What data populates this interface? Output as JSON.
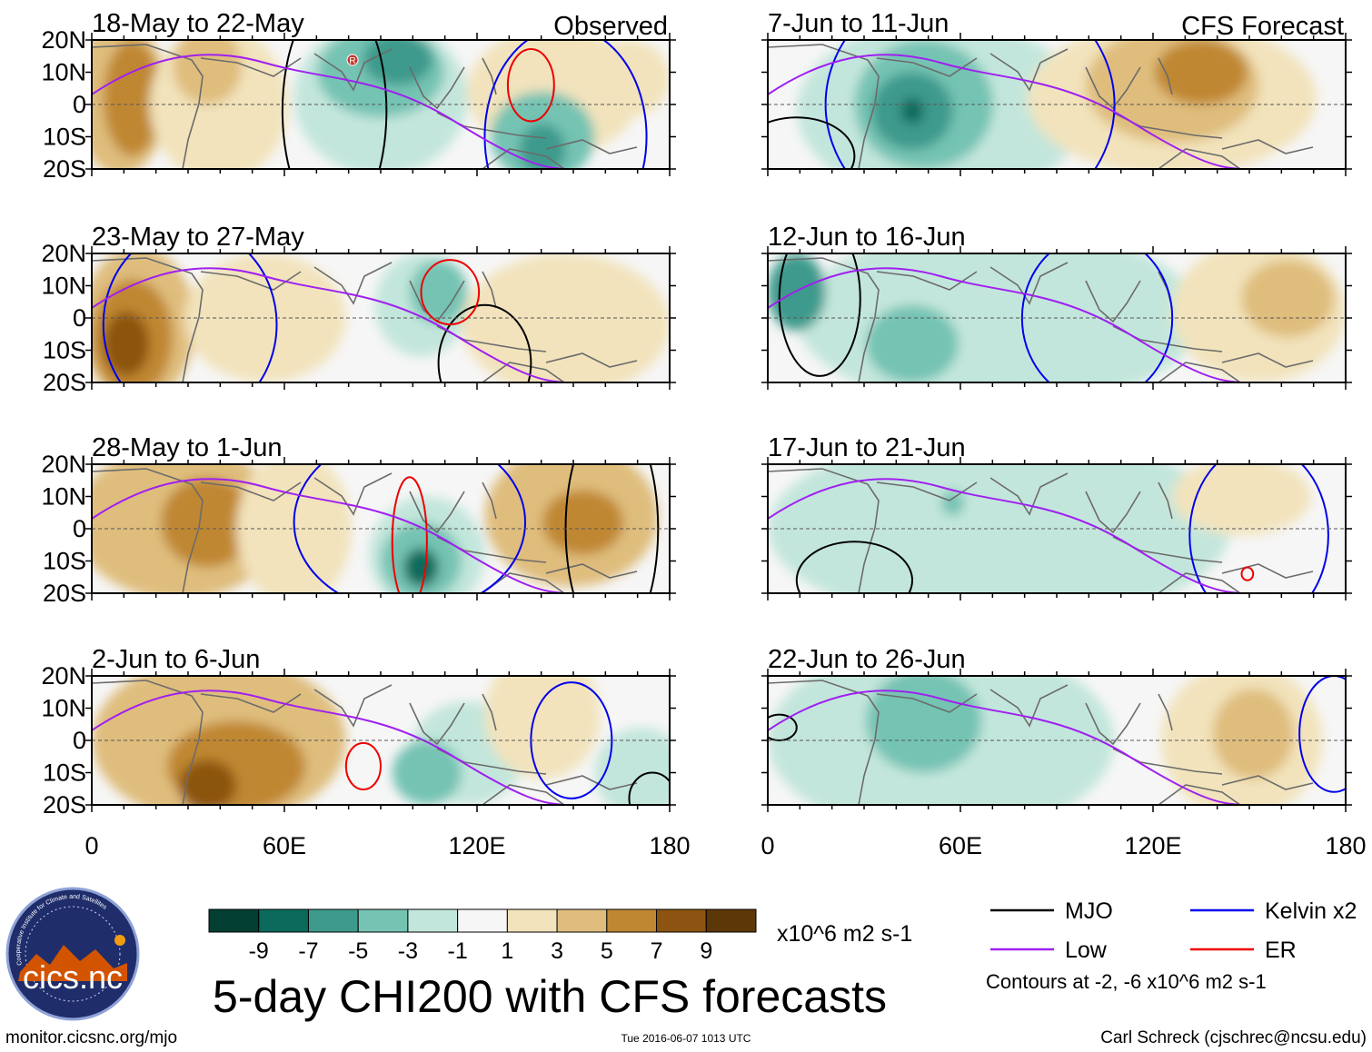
{
  "title": "5-day CHI200 with CFS forecasts",
  "units": "x10^6 m2 s-1",
  "colorbar": {
    "labels": [
      "-9",
      "-7",
      "-5",
      "-3",
      "-1",
      "1",
      "3",
      "5",
      "7",
      "9"
    ],
    "colors": [
      "#043f33",
      "#0b6a5c",
      "#3d9a8c",
      "#74c3b3",
      "#c3e6dc",
      "#f6f6f6",
      "#f2e3bc",
      "#dfbd7d",
      "#c08732",
      "#8c5410",
      "#5c3708"
    ]
  },
  "columns": [
    {
      "header": "Observed",
      "panels": [
        {
          "label": "18-May to 22-May"
        },
        {
          "label": "23-May to 27-May"
        },
        {
          "label": "28-May to 1-Jun"
        },
        {
          "label": "2-Jun to 6-Jun"
        }
      ]
    },
    {
      "header": "CFS Forecast",
      "panels": [
        {
          "label": "7-Jun to 11-Jun"
        },
        {
          "label": "12-Jun to 16-Jun"
        },
        {
          "label": "17-Jun to 21-Jun"
        },
        {
          "label": "22-Jun to 26-Jun"
        }
      ]
    }
  ],
  "lat_labels": [
    "20N",
    "10N",
    "0",
    "10S",
    "20S"
  ],
  "lon_labels": [
    "0",
    "60E",
    "120E",
    "180"
  ],
  "legend": {
    "items": [
      {
        "label": "MJO",
        "color": "#000000"
      },
      {
        "label": "Kelvin x2",
        "color": "#0000ee"
      },
      {
        "label": "Low",
        "color": "#a020f0"
      },
      {
        "label": "ER",
        "color": "#ee0000"
      }
    ],
    "contour_note": "Contours at -2, -6 x10^6 m2 s-1"
  },
  "logo_text": "cics.nc",
  "logo_ring_text": "Cooperative Institute for Climate and Satellites",
  "storm_marker": "R",
  "footer": {
    "url": "monitor.cicsnc.org/mjo",
    "date": "Tue 2016-06-07 1013 UTC",
    "credit": "Carl Schreck (cjschrec@ncsu.edu)"
  }
}
